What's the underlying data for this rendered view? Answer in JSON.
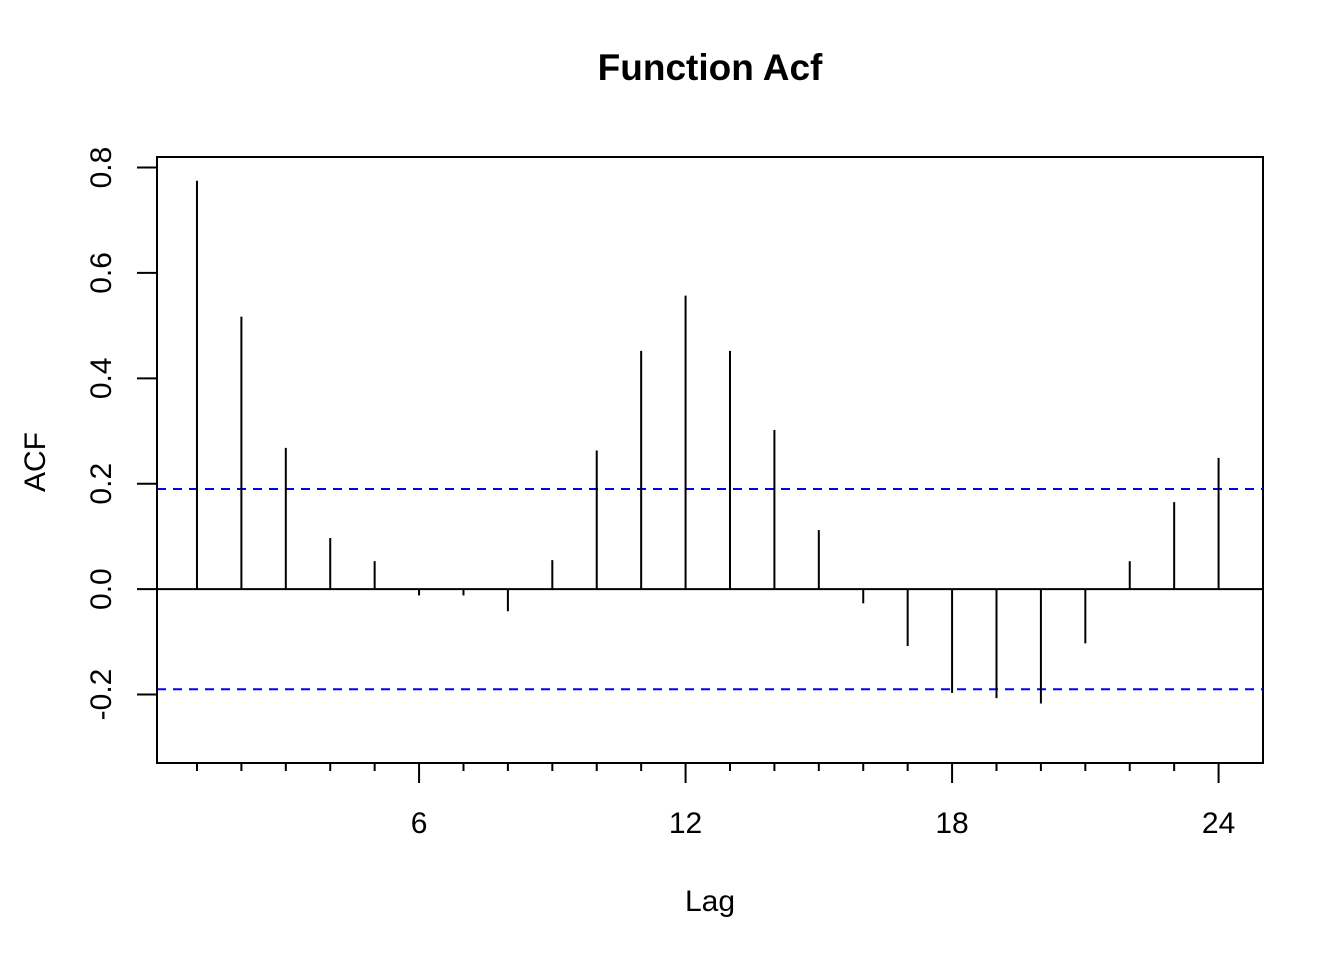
{
  "chart_data": {
    "type": "bar",
    "title": "Function Acf",
    "xlabel": "Lag",
    "ylabel": "ACF",
    "xlim": [
      0.1,
      25.0
    ],
    "ylim": [
      -0.33,
      0.82
    ],
    "x_ticks": [
      6,
      12,
      18,
      24
    ],
    "x_tick_labels": [
      "6",
      "12",
      "18",
      "24"
    ],
    "y_ticks": [
      -0.2,
      0.0,
      0.2,
      0.4,
      0.6,
      0.8
    ],
    "y_tick_labels": [
      "-0.2",
      "0.0",
      "0.2",
      "0.4",
      "0.6",
      "0.8"
    ],
    "lags": [
      1,
      2,
      3,
      4,
      5,
      6,
      7,
      8,
      9,
      10,
      11,
      12,
      13,
      14,
      15,
      16,
      17,
      18,
      19,
      20,
      21,
      22,
      23,
      24
    ],
    "values": [
      0.775,
      0.517,
      0.268,
      0.097,
      0.053,
      -0.012,
      -0.012,
      -0.042,
      0.055,
      0.263,
      0.452,
      0.557,
      0.452,
      0.302,
      0.112,
      -0.027,
      -0.108,
      -0.197,
      -0.207,
      -0.217,
      -0.103,
      0.053,
      0.165,
      0.249
    ],
    "confidence_bound": 0.19,
    "confidence_color": "#0000ff",
    "zero_line": true,
    "grid": false
  }
}
